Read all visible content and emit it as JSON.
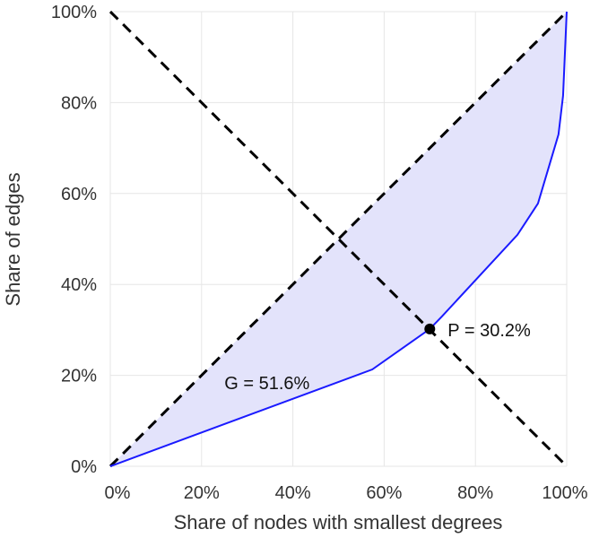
{
  "chart_data": {
    "type": "line",
    "title": "",
    "xlabel": "Share of nodes with smallest degrees",
    "ylabel": "Share of edges",
    "xlim": [
      0,
      100
    ],
    "ylim": [
      0,
      100
    ],
    "grid": true,
    "x_ticks": [
      "0%",
      "20%",
      "40%",
      "60%",
      "80%",
      "100%"
    ],
    "y_ticks": [
      "0%",
      "20%",
      "40%",
      "60%",
      "80%",
      "100%"
    ],
    "series": [
      {
        "name": "Lorenz curve",
        "color": "#1a1aff",
        "fill": "#e3e3fb",
        "x": [
          0,
          57.4,
          70,
          72.7,
          89.2,
          93.7,
          98.2,
          99.2,
          100
        ],
        "y": [
          0,
          21.3,
          30.2,
          33,
          50.9,
          57.8,
          73,
          81.5,
          100
        ]
      },
      {
        "name": "Equality line",
        "color": "#000000",
        "style": "dashed",
        "x": [
          0,
          100
        ],
        "y": [
          0,
          100
        ]
      },
      {
        "name": "Anti-diagonal",
        "color": "#000000",
        "style": "dashed",
        "x": [
          0,
          100
        ],
        "y": [
          100,
          0
        ]
      }
    ],
    "point": {
      "x": 70,
      "y": 30.2,
      "label": "P = 30.2%"
    },
    "annotation": {
      "x": 25,
      "y": 18.5,
      "label": "G = 51.6%"
    }
  }
}
